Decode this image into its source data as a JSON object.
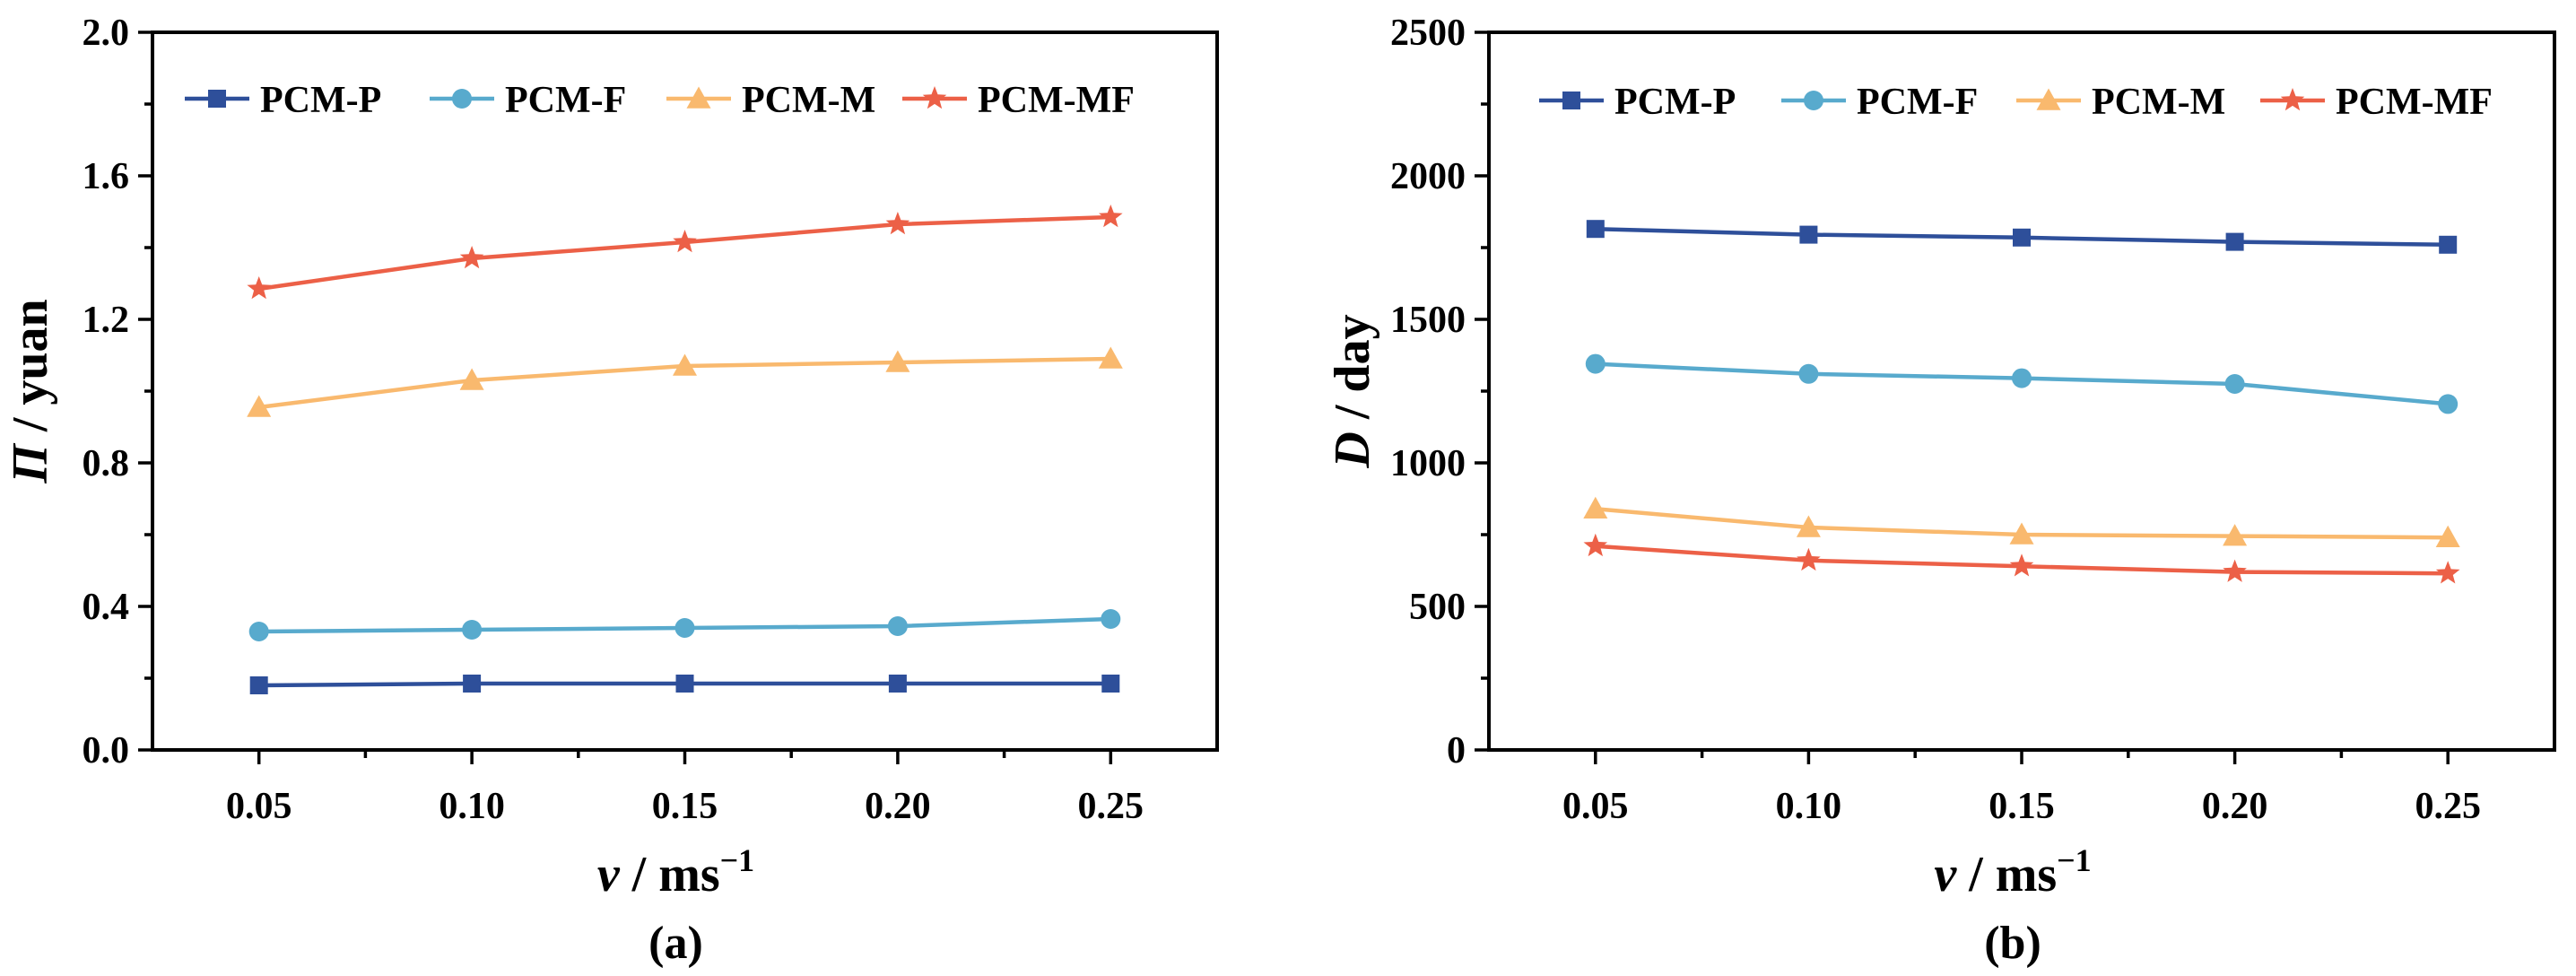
{
  "series_colors": [
    "#2e4f9a",
    "#58aacd",
    "#f9b96e",
    "#ec6047"
  ],
  "series_markers": [
    "square",
    "circle",
    "triangle",
    "star"
  ],
  "chart_data": [
    {
      "type": "line",
      "panel_label": "(a)",
      "ylabel_italic": "Π",
      "ylabel_rest": " / yuan",
      "xlabel_italic": "v",
      "xlabel_rest": " / ms",
      "xlabel_sup": "−1",
      "x": [
        0.05,
        0.1,
        0.15,
        0.2,
        0.25
      ],
      "x_tick_labels": [
        "0.05",
        "0.10",
        "0.15",
        "0.20",
        "0.25"
      ],
      "xlim": [
        0.025,
        0.275
      ],
      "ylim": [
        0,
        2.0
      ],
      "y_ticks": [
        0,
        0.4,
        0.8,
        1.2,
        1.6,
        2.0
      ],
      "y_tick_labels": [
        "0.0",
        "0.4",
        "0.8",
        "1.2",
        "1.6",
        "2.0"
      ],
      "legend": "top",
      "series": [
        {
          "name": "PCM-P",
          "values": [
            0.18,
            0.185,
            0.185,
            0.185,
            0.185
          ]
        },
        {
          "name": "PCM-F",
          "values": [
            0.33,
            0.335,
            0.34,
            0.345,
            0.365
          ]
        },
        {
          "name": "PCM-M",
          "values": [
            0.955,
            1.03,
            1.07,
            1.08,
            1.09
          ]
        },
        {
          "name": "PCM-MF",
          "values": [
            1.285,
            1.37,
            1.415,
            1.465,
            1.485
          ]
        }
      ]
    },
    {
      "type": "line",
      "panel_label": "(b)",
      "ylabel_italic": "D",
      "ylabel_rest": " / day",
      "xlabel_italic": "v",
      "xlabel_rest": " / ms",
      "xlabel_sup": "−1",
      "x": [
        0.05,
        0.1,
        0.15,
        0.2,
        0.25
      ],
      "x_tick_labels": [
        "0.05",
        "0.10",
        "0.15",
        "0.20",
        "0.25"
      ],
      "xlim": [
        0.025,
        0.275
      ],
      "ylim": [
        0,
        2500
      ],
      "y_ticks": [
        0,
        500,
        1000,
        1500,
        2000,
        2500
      ],
      "y_tick_labels": [
        "0",
        "500",
        "1000",
        "1500",
        "2000",
        "2500"
      ],
      "legend": "top",
      "series": [
        {
          "name": "PCM-P",
          "values": [
            1815,
            1795,
            1785,
            1770,
            1760
          ]
        },
        {
          "name": "PCM-F",
          "values": [
            1345,
            1310,
            1295,
            1275,
            1205
          ]
        },
        {
          "name": "PCM-M",
          "values": [
            840,
            775,
            750,
            745,
            740
          ]
        },
        {
          "name": "PCM-MF",
          "values": [
            710,
            660,
            640,
            620,
            615
          ]
        }
      ]
    }
  ]
}
